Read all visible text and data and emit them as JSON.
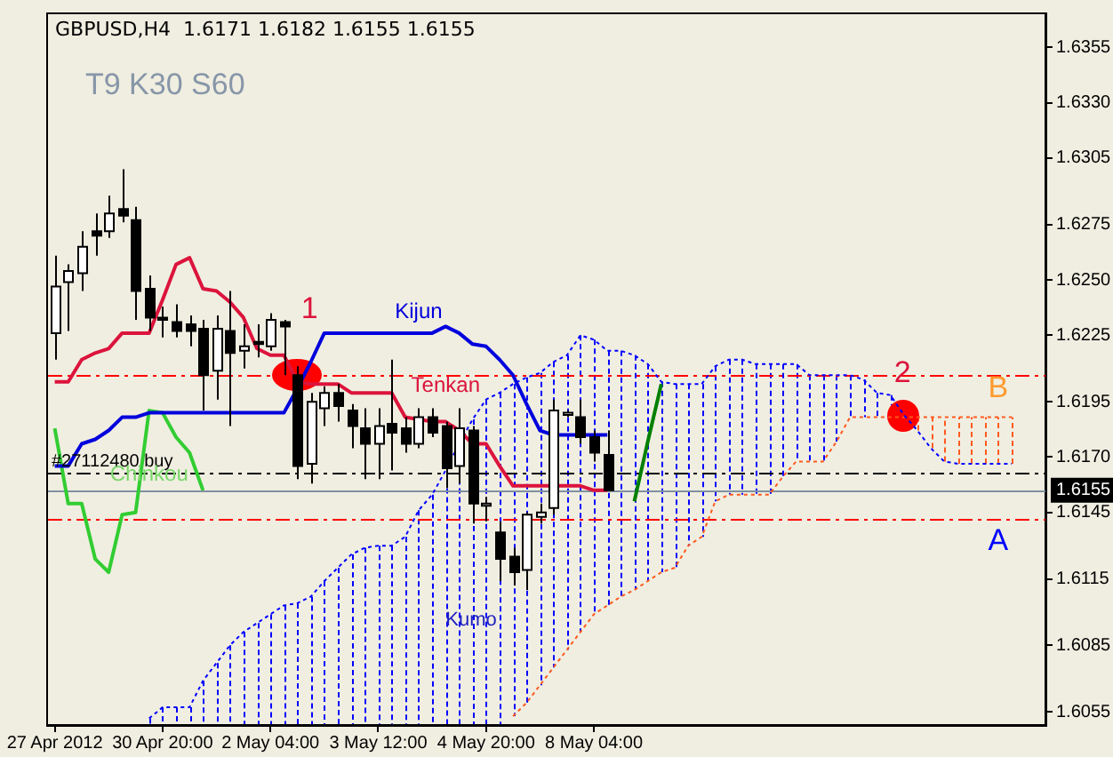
{
  "chart_data": {
    "type": "candlestick",
    "title": "GBPUSD,H4  1.6171 1.6182 1.6155 1.6155",
    "subtitle": "T9 K30 S60",
    "categories": [
      "27 Apr 2012",
      null,
      null,
      null,
      null,
      null,
      null,
      null,
      "30 Apr 20:00",
      null,
      null,
      null,
      null,
      null,
      null,
      null,
      "2 May 04:00",
      null,
      null,
      null,
      null,
      null,
      null,
      null,
      "3 May 12:00",
      null,
      null,
      null,
      null,
      null,
      null,
      null,
      "4 May 20:00",
      null,
      null,
      null,
      null,
      null,
      null,
      null,
      "8 May 04:00",
      null,
      null,
      null,
      null,
      null,
      null,
      null,
      null,
      null,
      null,
      null,
      null,
      null,
      null,
      null,
      null,
      null,
      null,
      null,
      null,
      null,
      null,
      null,
      null,
      null,
      null,
      null,
      null,
      null,
      null,
      null,
      null,
      null
    ],
    "ohlc": [
      [
        1.6226,
        1.6261,
        1.6214,
        1.6247
      ],
      [
        1.6249,
        1.6257,
        1.6227,
        1.6254
      ],
      [
        1.6253,
        1.6272,
        1.6245,
        1.6265
      ],
      [
        1.6272,
        1.628,
        1.6261,
        1.627
      ],
      [
        1.6272,
        1.6288,
        1.6269,
        1.628
      ],
      [
        1.6282,
        1.63,
        1.6276,
        1.6279
      ],
      [
        1.6277,
        1.6283,
        1.6232,
        1.6245
      ],
      [
        1.6246,
        1.6252,
        1.6227,
        1.6233
      ],
      [
        1.6233,
        1.6238,
        1.6224,
        1.6232
      ],
      [
        1.6231,
        1.6239,
        1.6224,
        1.6227
      ],
      [
        1.623,
        1.6234,
        1.622,
        1.6227
      ],
      [
        1.6228,
        1.6232,
        1.6191,
        1.6207
      ],
      [
        1.6209,
        1.6234,
        1.6196,
        1.6228
      ],
      [
        1.6227,
        1.6245,
        1.6184,
        1.6217
      ],
      [
        1.6218,
        1.623,
        1.621,
        1.622
      ],
      [
        1.6222,
        1.623,
        1.6215,
        1.6221
      ],
      [
        1.622,
        1.6235,
        1.6218,
        1.6232
      ],
      [
        1.6231,
        1.6232,
        1.6207,
        1.6229
      ],
      [
        1.6207,
        1.6211,
        1.616,
        1.6166
      ],
      [
        1.6167,
        1.6199,
        1.6158,
        1.6195
      ],
      [
        1.6192,
        1.6202,
        1.6184,
        1.6199
      ],
      [
        1.6199,
        1.6203,
        1.6186,
        1.6193
      ],
      [
        1.6191,
        1.6194,
        1.6174,
        1.6184
      ],
      [
        1.6183,
        1.6192,
        1.616,
        1.6176
      ],
      [
        1.6176,
        1.6192,
        1.616,
        1.6184
      ],
      [
        1.6185,
        1.6214,
        1.6164,
        1.6181
      ],
      [
        1.6183,
        1.6188,
        1.6172,
        1.6176
      ],
      [
        1.6176,
        1.6192,
        1.6174,
        1.6188
      ],
      [
        1.6188,
        1.6192,
        1.6179,
        1.6181
      ],
      [
        1.6184,
        1.6186,
        1.6156,
        1.6165
      ],
      [
        1.6166,
        1.6192,
        1.6158,
        1.6183
      ],
      [
        1.6182,
        1.6184,
        1.614,
        1.6149
      ],
      [
        1.6148,
        1.6152,
        1.6141,
        1.6149
      ],
      [
        1.6136,
        1.6141,
        1.6114,
        1.6124
      ],
      [
        1.6125,
        1.6129,
        1.6112,
        1.6118
      ],
      [
        1.6119,
        1.6145,
        1.611,
        1.6144
      ],
      [
        1.6143,
        1.6149,
        1.614,
        1.6145
      ],
      [
        1.6147,
        1.6196,
        1.6144,
        1.6191
      ],
      [
        1.6189,
        1.6191,
        1.6188,
        1.619
      ],
      [
        1.6188,
        1.6196,
        1.6176,
        1.6179
      ],
      [
        1.6179,
        1.6182,
        1.6168,
        1.6172
      ],
      [
        1.6171,
        1.6182,
        1.6155,
        1.6155
      ],
      null,
      null,
      null,
      null,
      null,
      null,
      null,
      null,
      null,
      null,
      null,
      null,
      null,
      null,
      null,
      null,
      null,
      null,
      null,
      null,
      null,
      null,
      null,
      null,
      null,
      null,
      null,
      null,
      null,
      null,
      null,
      null
    ],
    "series": [
      {
        "name": "Tenkan",
        "type": "line",
        "color": "#dc143c",
        "values": [
          1.6204,
          1.6204,
          1.6214,
          1.6217,
          1.6219,
          1.6226,
          1.6226,
          1.6226,
          1.6241,
          1.6257,
          1.626,
          1.6246,
          1.6245,
          1.624,
          1.6233,
          1.6219,
          1.6216,
          1.6216,
          1.6204,
          1.6203,
          1.6203,
          1.6203,
          1.6199,
          1.6199,
          1.6199,
          1.6199,
          1.6188,
          1.6187,
          1.6186,
          1.6186,
          1.6182,
          1.6176,
          1.6176,
          1.6166,
          1.6157,
          1.6157,
          1.6157,
          1.6157,
          1.6157,
          1.6157,
          1.6155,
          1.6155,
          null,
          null,
          null,
          null,
          null,
          null,
          null,
          null,
          null,
          null,
          null,
          null,
          null,
          null,
          null,
          null,
          null,
          null,
          null,
          null,
          null,
          null,
          null,
          null,
          null,
          null,
          null,
          null,
          null,
          null,
          null,
          null
        ]
      },
      {
        "name": "Kijun",
        "type": "line",
        "color": "#0000dd",
        "values": [
          1.6166,
          1.6166,
          1.6176,
          1.6178,
          1.6182,
          1.6188,
          1.6188,
          1.619,
          1.619,
          1.619,
          1.619,
          1.619,
          1.619,
          1.619,
          1.619,
          1.619,
          1.619,
          1.619,
          1.6201,
          1.6213,
          1.6226,
          1.6226,
          1.6226,
          1.6226,
          1.6226,
          1.6226,
          1.6226,
          1.6226,
          1.6226,
          1.6229,
          1.6226,
          1.6221,
          1.622,
          1.6214,
          1.6207,
          1.6194,
          1.6182,
          1.618,
          1.618,
          1.618,
          1.618,
          1.618,
          null,
          null,
          null,
          null,
          null,
          null,
          null,
          null,
          null,
          null,
          null,
          null,
          null,
          null,
          null,
          null,
          null,
          null,
          null,
          null,
          null,
          null,
          null,
          null,
          null,
          null,
          null,
          null,
          null,
          null,
          null,
          null
        ]
      },
      {
        "name": "Chinkou",
        "type": "line",
        "color": "#32cd32",
        "values": [
          1.6183,
          1.6149,
          1.6149,
          1.6124,
          1.6118,
          1.6144,
          1.6145,
          1.6191,
          1.619,
          1.6179,
          1.6172,
          1.6155,
          null,
          null,
          null,
          null,
          null,
          null,
          null,
          null,
          null,
          null,
          null,
          null,
          null,
          null,
          null,
          null,
          null,
          null,
          null,
          null,
          null,
          null,
          null,
          null,
          null,
          null,
          null,
          null,
          null,
          null,
          null,
          null,
          null,
          null,
          null,
          null,
          null,
          null,
          null,
          null,
          null,
          null,
          null,
          null,
          null,
          null,
          null,
          null,
          null,
          null,
          null,
          null,
          null,
          null,
          null,
          null,
          null,
          null,
          null,
          null,
          null,
          null
        ]
      },
      {
        "type": "line",
        "color": "#008000",
        "values": [
          null,
          null,
          null,
          null,
          null,
          null,
          null,
          null,
          null,
          null,
          null,
          null,
          null,
          null,
          null,
          null,
          null,
          null,
          null,
          null,
          null,
          null,
          null,
          null,
          null,
          null,
          null,
          null,
          null,
          null,
          null,
          null,
          null,
          null,
          null,
          null,
          null,
          null,
          null,
          null,
          null,
          null,
          null,
          1.615,
          1.6177,
          1.6203,
          null,
          null,
          null,
          null,
          null,
          null,
          null,
          null,
          null,
          null,
          null,
          null,
          null,
          null,
          null,
          null,
          null,
          null,
          null,
          null,
          null,
          null,
          null,
          null,
          null,
          null,
          null,
          null
        ]
      },
      {
        "name": "A",
        "type": "line",
        "color": "#0000ff",
        "line_style": "dotted",
        "values": [
          null,
          null,
          null,
          null,
          null,
          null,
          null,
          1.6052,
          1.6057,
          1.6057,
          1.6057,
          1.6069,
          1.6077,
          1.6085,
          1.6091,
          1.6095,
          1.6099,
          1.6103,
          1.6104,
          1.6107,
          1.6114,
          1.612,
          1.6126,
          1.6129,
          1.613,
          1.613,
          1.6134,
          1.6146,
          1.6153,
          1.6164,
          1.6176,
          1.6187,
          1.6196,
          1.6199,
          1.6203,
          1.6206,
          1.6208,
          1.6213,
          1.6216,
          1.6225,
          1.6223,
          1.6218,
          1.6218,
          1.6216,
          1.6212,
          1.6204,
          1.6203,
          1.6203,
          1.6203,
          1.6211,
          1.6214,
          1.6214,
          1.6212,
          1.6212,
          1.6212,
          1.6212,
          1.6207,
          1.6207,
          1.6207,
          1.6207,
          1.6205,
          1.6199,
          1.6198,
          1.6189,
          1.6182,
          1.6174,
          1.6168,
          1.6167,
          1.6167,
          1.6167,
          1.6167,
          1.6167,
          null,
          null
        ]
      },
      {
        "name": "B",
        "type": "line",
        "color": "#ff5a1e",
        "line_style": "dotted",
        "values": [
          null,
          null,
          null,
          null,
          null,
          null,
          null,
          null,
          null,
          null,
          null,
          null,
          null,
          null,
          null,
          null,
          null,
          null,
          null,
          null,
          null,
          null,
          null,
          null,
          null,
          null,
          null,
          null,
          null,
          null,
          null,
          null,
          null,
          null,
          1.6053,
          1.6059,
          1.6067,
          1.6075,
          1.6083,
          1.6091,
          1.6099,
          1.6103,
          1.6107,
          1.611,
          1.6114,
          1.6118,
          1.612,
          1.613,
          1.6134,
          1.615,
          1.6153,
          1.6153,
          1.6153,
          1.6153,
          1.6161,
          1.6168,
          1.6168,
          1.6168,
          1.6177,
          1.6188,
          1.6188,
          1.6188,
          1.6188,
          1.6188,
          1.6188,
          1.6188,
          1.6188,
          1.6188,
          1.6188,
          1.6188,
          1.6188,
          1.6188,
          null,
          null
        ]
      }
    ],
    "ref_lines": [
      {
        "axis": "y",
        "value": 1.6207,
        "color": "#ff0000",
        "line_style": "dashed"
      },
      {
        "axis": "y",
        "value": 1.6163,
        "label": "#27112480 buy",
        "color": "#000000",
        "line_style": "dashed"
      },
      {
        "axis": "y",
        "value": 1.6155,
        "label": "1.6155",
        "color": "#8090a0",
        "line_style": "solid"
      },
      {
        "axis": "y",
        "value": 1.6142,
        "color": "#ff0000",
        "line_style": "dashed"
      }
    ],
    "annotations": [
      {
        "text": "1",
        "y": 1.6207
      },
      {
        "text": "2",
        "y": 1.6189
      },
      "Kumo"
    ],
    "ylim": [
      1.6049,
      1.637
    ],
    "yticks": [
      1.6355,
      {
        "value": 1.633,
        "label": "1.6330"
      },
      1.6305,
      1.6275,
      {
        "value": 1.625,
        "label": "1.6250"
      },
      1.6225,
      1.6195,
      {
        "value": 1.617,
        "label": "1.6170"
      },
      1.6145,
      1.6115,
      1.6085,
      1.6055
    ],
    "grid": false,
    "legend": false,
    "marker": "none",
    "line_style": "solid"
  }
}
